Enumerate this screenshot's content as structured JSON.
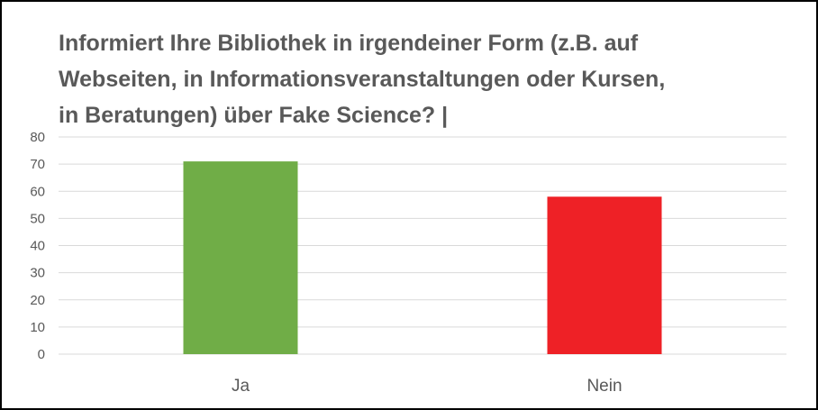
{
  "chart_data": {
    "type": "bar",
    "title_lines": [
      "Informiert Ihre Bibliothek in irgendeiner Form (z.B. auf",
      "Webseiten, in Informationsveranstaltungen oder Kursen,",
      "in Beratungen) über Fake Science? |"
    ],
    "categories": [
      "Ja",
      "Nein"
    ],
    "values": [
      71,
      58
    ],
    "bar_colors": [
      "#70ad47",
      "#ee2126"
    ],
    "ylim": [
      0,
      80
    ],
    "yticks": [
      0,
      10,
      20,
      30,
      40,
      50,
      60,
      70,
      80
    ],
    "grid": true,
    "legend": "none",
    "xlabel": "",
    "ylabel": ""
  }
}
